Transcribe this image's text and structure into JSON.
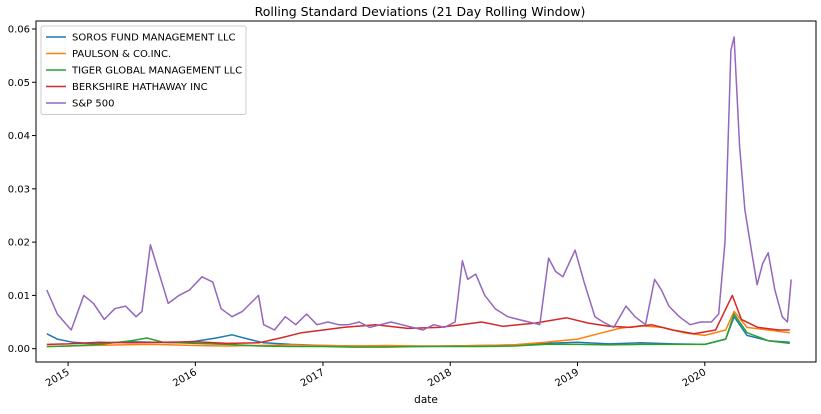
{
  "chart_data": {
    "type": "line",
    "title": "Rolling Standard Deviations (21 Day Rolling Window)",
    "xlabel": "date",
    "ylabel": "",
    "xlim": [
      "2014-10-01",
      "2020-11-15"
    ],
    "ylim": [
      -0.0025,
      0.0615
    ],
    "yticks": [
      0.0,
      0.01,
      0.02,
      0.03,
      0.04,
      0.05,
      0.06
    ],
    "ytick_labels": [
      "0.00",
      "0.01",
      "0.02",
      "0.03",
      "0.04",
      "0.05",
      "0.06"
    ],
    "xticks": [
      "2015-01-01",
      "2016-01-01",
      "2017-01-01",
      "2018-01-01",
      "2019-01-01",
      "2020-01-01"
    ],
    "xtick_labels": [
      "2015",
      "2016",
      "2017",
      "2018",
      "2019",
      "2020"
    ],
    "grid": false,
    "legend_position": "upper left",
    "series": [
      {
        "name": "SOROS FUND MANAGEMENT LLC",
        "color": "#1f77b4",
        "x": [
          "2014-11-01",
          "2014-12-01",
          "2015-01-15",
          "2015-03-01",
          "2015-05-01",
          "2015-07-01",
          "2015-09-01",
          "2015-11-01",
          "2016-01-01",
          "2016-03-01",
          "2016-04-15",
          "2016-06-01",
          "2016-07-15",
          "2016-10-01",
          "2017-01-01",
          "2017-04-01",
          "2017-07-01",
          "2017-10-01",
          "2018-01-01",
          "2018-04-01",
          "2018-07-01",
          "2018-10-01",
          "2019-01-01",
          "2019-04-01",
          "2019-07-01",
          "2019-10-01",
          "2020-01-01",
          "2020-03-01",
          "2020-03-25",
          "2020-05-01",
          "2020-07-01",
          "2020-09-01"
        ],
        "y": [
          0.0028,
          0.0018,
          0.0012,
          0.001,
          0.0011,
          0.0013,
          0.0012,
          0.0011,
          0.0014,
          0.002,
          0.0026,
          0.0018,
          0.0011,
          0.0008,
          0.0006,
          0.0005,
          0.0005,
          0.0004,
          0.0005,
          0.0006,
          0.0007,
          0.001,
          0.0012,
          0.0009,
          0.0011,
          0.0009,
          0.0008,
          0.0018,
          0.006,
          0.0025,
          0.0015,
          0.0012
        ]
      },
      {
        "name": "PAULSON & CO.INC.",
        "color": "#ff7f0e",
        "x": [
          "2014-11-01",
          "2015-01-01",
          "2015-03-01",
          "2015-06-01",
          "2015-09-01",
          "2016-01-01",
          "2016-04-01",
          "2016-07-01",
          "2016-10-01",
          "2017-01-01",
          "2017-04-01",
          "2017-07-01",
          "2017-10-01",
          "2018-01-01",
          "2018-04-01",
          "2018-07-01",
          "2018-10-01",
          "2019-01-01",
          "2019-03-01",
          "2019-05-01",
          "2019-07-01",
          "2019-09-01",
          "2019-11-01",
          "2020-01-01",
          "2020-03-01",
          "2020-03-25",
          "2020-05-01",
          "2020-07-01",
          "2020-09-01"
        ],
        "y": [
          0.0004,
          0.0005,
          0.0006,
          0.0007,
          0.0008,
          0.0006,
          0.0005,
          0.0006,
          0.0007,
          0.0006,
          0.0005,
          0.0006,
          0.0005,
          0.0005,
          0.0006,
          0.0007,
          0.0012,
          0.0018,
          0.0028,
          0.0038,
          0.0043,
          0.004,
          0.003,
          0.0025,
          0.0035,
          0.007,
          0.004,
          0.0035,
          0.003
        ]
      },
      {
        "name": "TIGER GLOBAL MANAGEMENT LLC",
        "color": "#2ca02c",
        "x": [
          "2014-11-01",
          "2015-01-01",
          "2015-04-01",
          "2015-07-01",
          "2015-08-15",
          "2015-10-01",
          "2016-01-01",
          "2016-04-01",
          "2016-07-01",
          "2016-10-01",
          "2017-01-01",
          "2017-04-01",
          "2017-07-01",
          "2017-10-01",
          "2018-01-01",
          "2018-04-01",
          "2018-07-01",
          "2018-10-01",
          "2019-01-01",
          "2019-04-01",
          "2019-07-01",
          "2019-10-01",
          "2020-01-01",
          "2020-03-01",
          "2020-03-25",
          "2020-05-01",
          "2020-07-01",
          "2020-09-01"
        ],
        "y": [
          0.0004,
          0.0005,
          0.0008,
          0.0015,
          0.002,
          0.0012,
          0.001,
          0.0008,
          0.0005,
          0.0004,
          0.0004,
          0.0003,
          0.0003,
          0.0004,
          0.0004,
          0.0004,
          0.0005,
          0.0008,
          0.0008,
          0.0007,
          0.0008,
          0.0008,
          0.0008,
          0.0018,
          0.0065,
          0.003,
          0.0015,
          0.001
        ]
      },
      {
        "name": "BERKSHIRE HATHAWAY INC",
        "color": "#d62728",
        "x": [
          "2014-11-01",
          "2015-01-01",
          "2015-04-01",
          "2015-07-01",
          "2015-10-01",
          "2016-01-01",
          "2016-04-01",
          "2016-07-01",
          "2016-09-01",
          "2016-11-01",
          "2017-01-01",
          "2017-03-01",
          "2017-06-01",
          "2017-09-01",
          "2017-12-01",
          "2018-02-01",
          "2018-04-01",
          "2018-06-01",
          "2018-09-01",
          "2018-12-01",
          "2019-02-01",
          "2019-04-01",
          "2019-06-01",
          "2019-08-01",
          "2019-10-01",
          "2019-12-01",
          "2020-02-01",
          "2020-03-20",
          "2020-04-15",
          "2020-06-01",
          "2020-08-01",
          "2020-09-01"
        ],
        "y": [
          0.0008,
          0.0009,
          0.0012,
          0.0011,
          0.0012,
          0.0013,
          0.001,
          0.0011,
          0.002,
          0.003,
          0.0035,
          0.004,
          0.0045,
          0.0038,
          0.004,
          0.0045,
          0.005,
          0.0042,
          0.0048,
          0.0058,
          0.0048,
          0.0042,
          0.004,
          0.0045,
          0.0035,
          0.0028,
          0.0035,
          0.01,
          0.0055,
          0.004,
          0.0035,
          0.0035
        ]
      },
      {
        "name": "S&P 500",
        "color": "#9467bd",
        "x": [
          "2014-11-01",
          "2014-12-01",
          "2015-01-10",
          "2015-02-15",
          "2015-03-15",
          "2015-04-15",
          "2015-05-15",
          "2015-06-15",
          "2015-07-15",
          "2015-08-01",
          "2015-08-25",
          "2015-09-15",
          "2015-10-15",
          "2015-11-15",
          "2015-12-15",
          "2016-01-20",
          "2016-02-20",
          "2016-03-15",
          "2016-04-15",
          "2016-05-15",
          "2016-06-30",
          "2016-07-15",
          "2016-08-15",
          "2016-09-15",
          "2016-10-15",
          "2016-11-15",
          "2016-12-15",
          "2017-01-15",
          "2017-02-15",
          "2017-03-15",
          "2017-04-15",
          "2017-05-15",
          "2017-06-15",
          "2017-07-15",
          "2017-08-15",
          "2017-09-15",
          "2017-10-15",
          "2017-11-15",
          "2017-12-15",
          "2018-01-15",
          "2018-02-05",
          "2018-02-20",
          "2018-03-15",
          "2018-04-10",
          "2018-05-10",
          "2018-06-15",
          "2018-07-15",
          "2018-08-15",
          "2018-09-15",
          "2018-10-10",
          "2018-10-30",
          "2018-11-20",
          "2018-12-25",
          "2019-01-20",
          "2019-02-20",
          "2019-03-15",
          "2019-04-15",
          "2019-05-20",
          "2019-06-15",
          "2019-07-15",
          "2019-08-10",
          "2019-08-30",
          "2019-09-20",
          "2019-10-20",
          "2019-11-20",
          "2019-12-20",
          "2020-01-20",
          "2020-02-10",
          "2020-02-28",
          "2020-03-16",
          "2020-03-25",
          "2020-04-10",
          "2020-04-25",
          "2020-05-15",
          "2020-05-30",
          "2020-06-15",
          "2020-07-01",
          "2020-07-20",
          "2020-08-10",
          "2020-08-25",
          "2020-09-05"
        ],
        "y": [
          0.011,
          0.0065,
          0.0035,
          0.01,
          0.0085,
          0.0055,
          0.0075,
          0.008,
          0.006,
          0.007,
          0.0195,
          0.015,
          0.0085,
          0.01,
          0.011,
          0.0135,
          0.0125,
          0.0075,
          0.006,
          0.007,
          0.01,
          0.0045,
          0.0035,
          0.006,
          0.0045,
          0.0065,
          0.0045,
          0.005,
          0.0045,
          0.0045,
          0.005,
          0.004,
          0.0045,
          0.005,
          0.0045,
          0.004,
          0.0035,
          0.0045,
          0.004,
          0.005,
          0.0165,
          0.013,
          0.014,
          0.01,
          0.0075,
          0.006,
          0.0055,
          0.005,
          0.0045,
          0.017,
          0.0145,
          0.0135,
          0.0185,
          0.0125,
          0.006,
          0.005,
          0.004,
          0.008,
          0.006,
          0.0045,
          0.013,
          0.011,
          0.008,
          0.006,
          0.0045,
          0.005,
          0.005,
          0.0065,
          0.02,
          0.056,
          0.0585,
          0.038,
          0.026,
          0.018,
          0.012,
          0.016,
          0.018,
          0.011,
          0.006,
          0.005,
          0.013
        ]
      }
    ]
  }
}
